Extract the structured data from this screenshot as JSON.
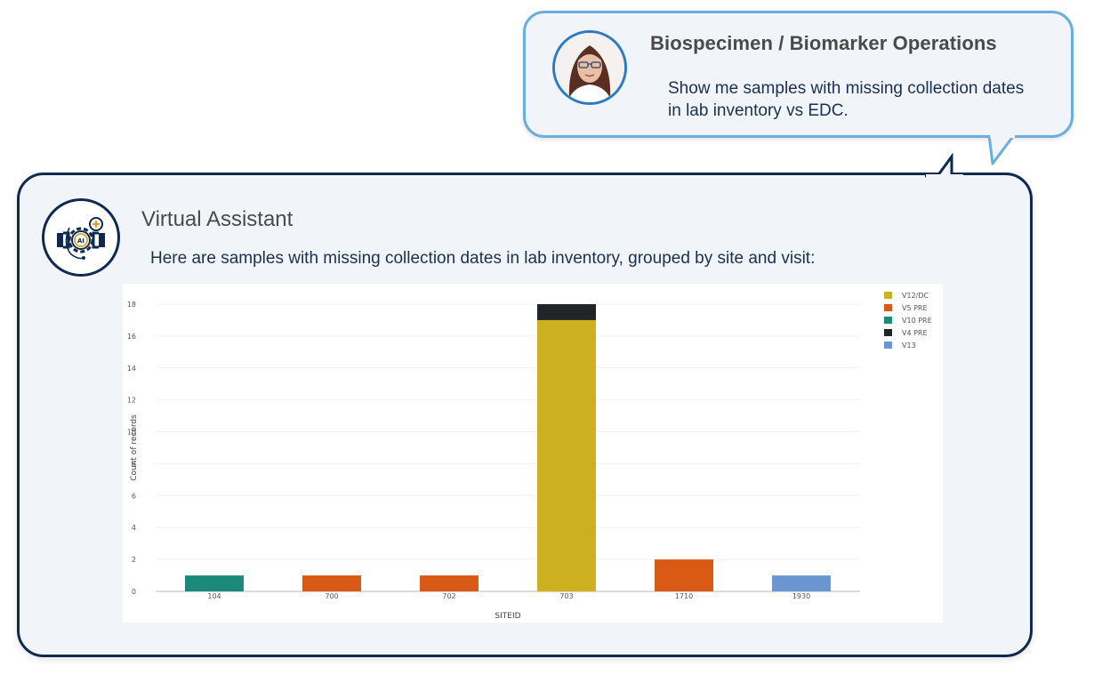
{
  "user_message": {
    "sender": "Biospecimen / Biomarker Operations",
    "avatar": "user-portrait-avatar",
    "text": "Show me samples with missing collection dates in lab inventory vs EDC."
  },
  "assistant_message": {
    "sender": "Virtual Assistant",
    "avatar": "ai-gear-assistant-icon",
    "text": "Here are samples with missing collection dates in lab inventory, grouped by site and visit:"
  },
  "colors": {
    "user_bubble_border": "#6aaee0",
    "assistant_bubble_border": "#0f2a4d",
    "bubble_fill": "#f1f5f9",
    "text_dark": "#1b2f4f",
    "title_gray": "#4a4a4a"
  },
  "chart_data": {
    "type": "bar",
    "stacked": true,
    "title": "",
    "xlabel": "SITEID",
    "ylabel": "Count of records",
    "categories": [
      "104",
      "700",
      "702",
      "703",
      "1710",
      "1930"
    ],
    "ylim": [
      0,
      18
    ],
    "yticks": [
      0,
      2,
      4,
      6,
      8,
      10,
      12,
      14,
      16,
      18
    ],
    "grid": true,
    "legend_position": "right-top",
    "series": [
      {
        "name": "V12/DC",
        "color": "#cdb020",
        "values": [
          0,
          0,
          0,
          17,
          0,
          0
        ]
      },
      {
        "name": "V5 PRE",
        "color": "#d85a14",
        "values": [
          0,
          1,
          1,
          0,
          2,
          0
        ]
      },
      {
        "name": "V10 PRE",
        "color": "#1b8a7a",
        "values": [
          1,
          0,
          0,
          0,
          0,
          0
        ]
      },
      {
        "name": "V4 PRE",
        "color": "#222527",
        "values": [
          0,
          0,
          0,
          1,
          0,
          0
        ]
      },
      {
        "name": "V13",
        "color": "#6b96d2",
        "values": [
          0,
          0,
          0,
          0,
          0,
          1
        ]
      }
    ]
  }
}
